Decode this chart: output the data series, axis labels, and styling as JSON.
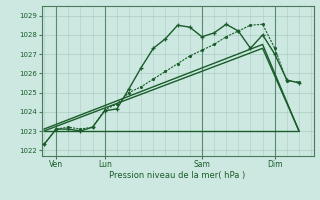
{
  "title": "Pression niveau de la mer( hPa )",
  "ylabel_ticks": [
    1022,
    1023,
    1024,
    1025,
    1026,
    1027,
    1028,
    1029
  ],
  "ylim": [
    1021.7,
    1029.5
  ],
  "bg_color": "#cce8e0",
  "grid_color": "#aaccc4",
  "line_color": "#1a5c2a",
  "xtick_labels": [
    "Ven",
    "Lun",
    "Sam",
    "Dim"
  ],
  "xtick_positions": [
    1,
    5,
    13,
    19
  ],
  "vline_positions": [
    1,
    5,
    13,
    19
  ],
  "xlim": [
    -0.2,
    22.2
  ],
  "line1_x": [
    0,
    1,
    2,
    3,
    4,
    5,
    6,
    7,
    8,
    9,
    10,
    11,
    12,
    13,
    14,
    15,
    16,
    17,
    18,
    19,
    20,
    21
  ],
  "line1_y": [
    1022.3,
    1023.1,
    1023.1,
    1023.0,
    1023.2,
    1024.05,
    1024.15,
    1025.2,
    1026.3,
    1027.3,
    1027.8,
    1028.5,
    1028.4,
    1027.9,
    1028.1,
    1028.55,
    1028.2,
    1027.3,
    1028.0,
    1027.0,
    1025.65,
    1025.5
  ],
  "line2_x": [
    0,
    1,
    2,
    3,
    4,
    5,
    6,
    7,
    8,
    9,
    10,
    11,
    12,
    13,
    14,
    15,
    16,
    17,
    18,
    19,
    20,
    21
  ],
  "line2_y": [
    1022.3,
    1023.1,
    1023.2,
    1023.1,
    1023.2,
    1024.1,
    1024.4,
    1025.0,
    1025.3,
    1025.7,
    1026.1,
    1026.5,
    1026.9,
    1027.2,
    1027.5,
    1027.9,
    1028.2,
    1028.5,
    1028.55,
    1027.3,
    1025.6,
    1025.55
  ],
  "line3_x": [
    0,
    13,
    21
  ],
  "line3_y": [
    1023.0,
    1023.0,
    1023.0
  ],
  "line4_x": [
    0,
    18,
    21
  ],
  "line4_y": [
    1023.0,
    1027.3,
    1023.0
  ],
  "line5_x": [
    0,
    18,
    21
  ],
  "line5_y": [
    1023.1,
    1027.5,
    1023.0
  ]
}
